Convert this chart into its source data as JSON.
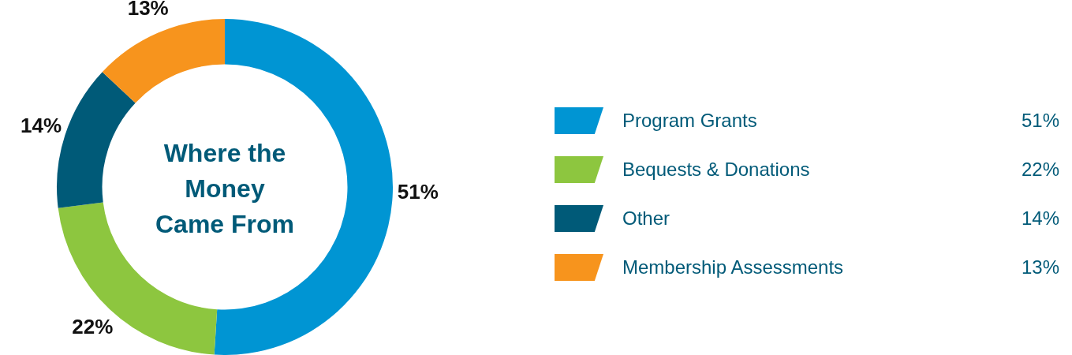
{
  "chart_data": {
    "type": "donut",
    "title": "Where the Money Came From",
    "categories": [
      "Program Grants",
      "Bequests & Donations",
      "Other",
      "Membership Assessments"
    ],
    "values": [
      51,
      22,
      14,
      13
    ],
    "colors": [
      "#0095d3",
      "#8dc63f",
      "#005a78",
      "#f7941d"
    ],
    "value_labels": [
      "51%",
      "22%",
      "14%",
      "13%"
    ],
    "legend": "right"
  }
}
